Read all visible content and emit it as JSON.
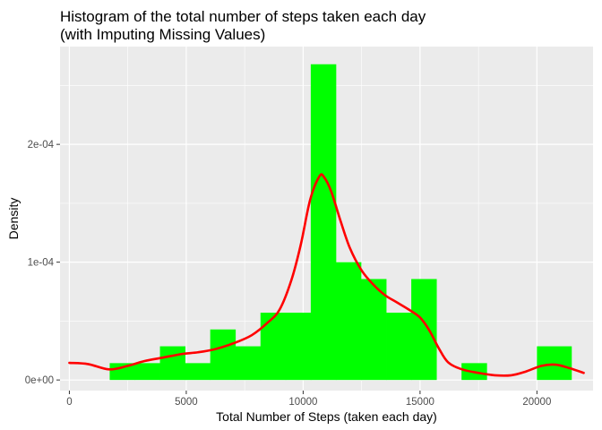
{
  "chart_data": {
    "type": "bar",
    "title_lines": [
      "Histogram of the total number of steps taken each day",
      "(with Imputing Missing Values)"
    ],
    "xlabel": "Total Number of Steps (taken each day)",
    "ylabel": "Density",
    "xlim": [
      -400,
      22400
    ],
    "ylim": [
      -9e-06,
      0.000283
    ],
    "x_ticks": [
      {
        "value": 0,
        "label": "0"
      },
      {
        "value": 5000,
        "label": "5000"
      },
      {
        "value": 10000,
        "label": "10000"
      },
      {
        "value": 15000,
        "label": "15000"
      },
      {
        "value": 20000,
        "label": "20000"
      }
    ],
    "y_ticks": [
      {
        "value": 0,
        "label": "0e+00"
      },
      {
        "value": 0.0001,
        "label": "1e-04"
      },
      {
        "value": 0.0002,
        "label": "2e-04"
      }
    ],
    "grid": true,
    "bar_color": "#00FF00",
    "density_color": "#FF0000",
    "panel_color": "#EBEBEB",
    "grid_color": "#FFFFFF",
    "bins": [
      {
        "x0": 1725,
        "x1": 2800,
        "density": 1.43e-05
      },
      {
        "x0": 2800,
        "x1": 3875,
        "density": 1.43e-05
      },
      {
        "x0": 3875,
        "x1": 4950,
        "density": 2.86e-05
      },
      {
        "x0": 4950,
        "x1": 6025,
        "density": 1.43e-05
      },
      {
        "x0": 6025,
        "x1": 7100,
        "density": 4.29e-05
      },
      {
        "x0": 7100,
        "x1": 8175,
        "density": 2.86e-05
      },
      {
        "x0": 8175,
        "x1": 9250,
        "density": 5.71e-05
      },
      {
        "x0": 9250,
        "x1": 10325,
        "density": 5.71e-05
      },
      {
        "x0": 10325,
        "x1": 11400,
        "density": 0.000268
      },
      {
        "x0": 11400,
        "x1": 12475,
        "density": 0.0001
      },
      {
        "x0": 12475,
        "x1": 13550,
        "density": 8.57e-05
      },
      {
        "x0": 13550,
        "x1": 14625,
        "density": 5.71e-05
      },
      {
        "x0": 14625,
        "x1": 15700,
        "density": 8.57e-05
      },
      {
        "x0": 15700,
        "x1": 16775,
        "density": 0
      },
      {
        "x0": 16775,
        "x1": 17850,
        "density": 1.43e-05
      },
      {
        "x0": 17850,
        "x1": 18925,
        "density": 0
      },
      {
        "x0": 18925,
        "x1": 20000,
        "density": 0
      },
      {
        "x0": 20000,
        "x1": 21475,
        "density": 2.86e-05
      }
    ],
    "density_curve": {
      "x": [
        0,
        800,
        1700,
        2500,
        3200,
        4000,
        4800,
        5500,
        6200,
        7000,
        7800,
        8500,
        9000,
        9500,
        9900,
        10300,
        10700,
        10900,
        11200,
        11600,
        12000,
        12500,
        13000,
        13500,
        14000,
        14500,
        15000,
        15400,
        15800,
        16200,
        16800,
        17500,
        18200,
        18900,
        19500,
        20200,
        20800,
        21400,
        22000
      ],
      "y": [
        1.45e-05,
        1.35e-05,
        9e-06,
        1.2e-05,
        1.6e-05,
        1.9e-05,
        2.2e-05,
        2.35e-05,
        2.6e-05,
        3.1e-05,
        3.8e-05,
        4.9e-05,
        6e-05,
        8.5e-05,
        0.000115,
        0.000153,
        0.000173,
        0.000172,
        0.00016,
        0.000135,
        0.000112,
        9.3e-05,
        8.1e-05,
        7.2e-05,
        6.6e-05,
        6e-05,
        5.3e-05,
        4.2e-05,
        2.7e-05,
        1.5e-05,
        9e-06,
        6e-06,
        4e-06,
        4e-06,
        7e-06,
        1.2e-05,
        1.3e-05,
        1e-05,
        6e-06
      ]
    }
  }
}
